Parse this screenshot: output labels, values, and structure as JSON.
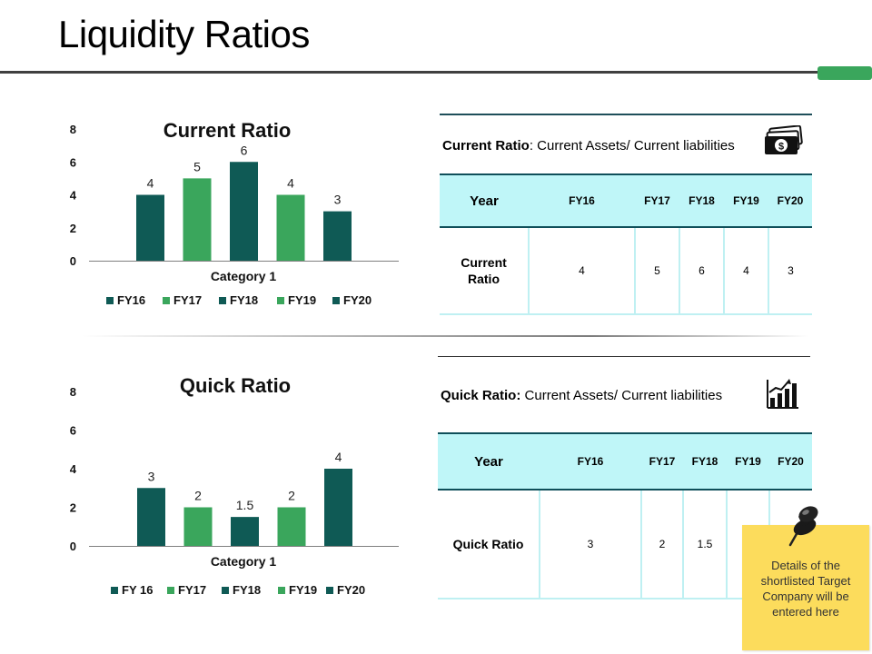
{
  "slide": {
    "title": "Liquidity Ratios",
    "colors": {
      "dark_teal": "#0f5a55",
      "green": "#3aa65c",
      "cyan": "#bff6f8",
      "note_yellow": "#fcdc5c"
    }
  },
  "chart_data": [
    {
      "type": "bar",
      "title": "Current Ratio",
      "xlabel": "Category 1",
      "categories": [
        "Category 1"
      ],
      "series": [
        {
          "name": "FY16",
          "values": [
            4
          ]
        },
        {
          "name": "FY17",
          "values": [
            5
          ]
        },
        {
          "name": "FY18",
          "values": [
            6
          ]
        },
        {
          "name": "FY19",
          "values": [
            4
          ]
        },
        {
          "name": "FY20",
          "values": [
            3
          ]
        }
      ],
      "data_labels": [
        "4",
        "5",
        "6",
        "4",
        "3"
      ],
      "yticks": [
        "0",
        "2",
        "4",
        "6",
        "8"
      ],
      "ylim": [
        0,
        8
      ],
      "legend": "bottom",
      "grid": false,
      "series_colors": [
        "#0f5a55",
        "#3aa65c",
        "#0f5a55",
        "#3aa65c",
        "#0f5a55"
      ]
    },
    {
      "type": "bar",
      "title": "Quick Ratio",
      "xlabel": "Category 1",
      "categories": [
        "Category 1"
      ],
      "series": [
        {
          "name": "FY 16",
          "values": [
            3
          ]
        },
        {
          "name": "FY17",
          "values": [
            2
          ]
        },
        {
          "name": "FY18",
          "values": [
            1.5
          ]
        },
        {
          "name": "FY19",
          "values": [
            2
          ]
        },
        {
          "name": "FY20",
          "values": [
            4
          ]
        }
      ],
      "data_labels": [
        "3",
        "2",
        "1.5",
        "2",
        "4"
      ],
      "yticks": [
        "0",
        "2",
        "4",
        "6",
        "8"
      ],
      "ylim": [
        0,
        8
      ],
      "legend": "bottom",
      "grid": false,
      "series_colors": [
        "#0f5a55",
        "#3aa65c",
        "#0f5a55",
        "#3aa65c",
        "#0f5a55"
      ]
    }
  ],
  "current_panel": {
    "term": "Current Ratio",
    "formula": ": Current Assets/ Current liabilities",
    "icon": "money-icon",
    "table": {
      "year_label": "Year",
      "years": [
        "FY16",
        "FY17",
        "FY18",
        "FY19",
        "FY20"
      ],
      "row_label": "Current Ratio",
      "values": [
        "4",
        "5",
        "6",
        "4",
        "3"
      ]
    }
  },
  "quick_panel": {
    "term": "Quick Ratio:",
    "formula": " Current Assets/ Current liabilities",
    "icon": "growth-chart-icon",
    "table": {
      "year_label": "Year",
      "years": [
        "FY16",
        "FY17",
        "FY18",
        "FY19",
        "FY20"
      ],
      "row_label": "Quick Ratio",
      "values": [
        "3",
        "2",
        "1.5",
        "",
        ""
      ]
    }
  },
  "note": {
    "text": "Details of the\nshortlisted Target\nCompany will be\nentered here",
    "icon": "pushpin-icon"
  }
}
